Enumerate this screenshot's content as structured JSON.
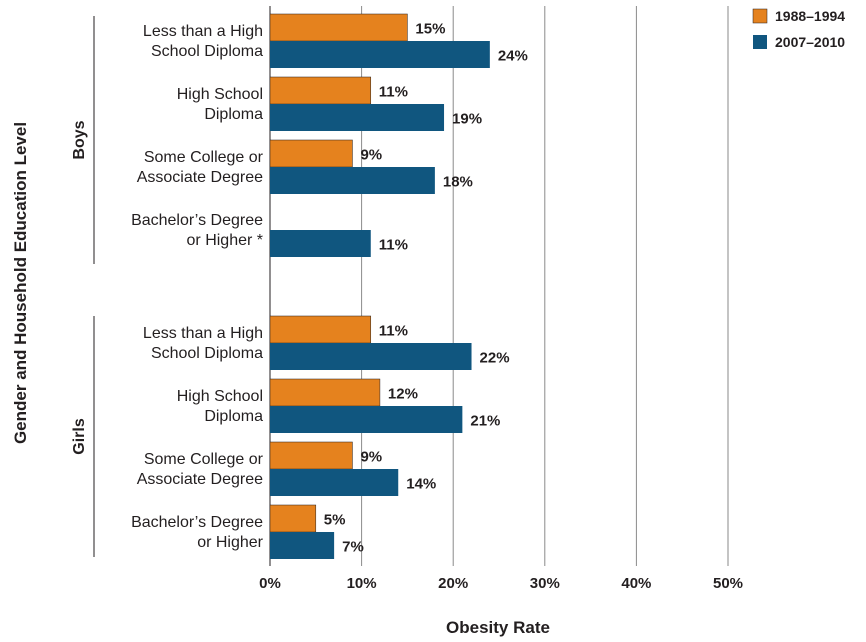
{
  "chart_data": {
    "type": "bar",
    "orientation": "horizontal",
    "xlabel": "Obesity Rate",
    "ylabel": "Gender and Household Education Level",
    "xlim": [
      0,
      50
    ],
    "xticks": [
      "0%",
      "10%",
      "20%",
      "30%",
      "40%",
      "50%"
    ],
    "grid": true,
    "legend_position": "top-right",
    "series": [
      {
        "name": "1988–1994",
        "color": "#e5821e"
      },
      {
        "name": "2007–2010",
        "color": "#10567f"
      }
    ],
    "groups": [
      {
        "name": "Boys",
        "categories": [
          {
            "label": [
              "Less than a High",
              "School Diploma"
            ],
            "values": [
              15,
              24
            ],
            "labels": [
              "15%",
              "24%"
            ]
          },
          {
            "label": [
              "High School",
              "Diploma"
            ],
            "values": [
              11,
              19
            ],
            "labels": [
              "11%",
              "19%"
            ]
          },
          {
            "label": [
              "Some College or",
              "Associate Degree"
            ],
            "values": [
              9,
              18
            ],
            "labels": [
              "9%",
              "18%"
            ]
          },
          {
            "label": [
              "Bachelor’s Degree",
              "or Higher *"
            ],
            "values": [
              null,
              11
            ],
            "labels": [
              null,
              "11%"
            ]
          }
        ]
      },
      {
        "name": "Girls",
        "categories": [
          {
            "label": [
              "Less than a High",
              "School Diploma"
            ],
            "values": [
              11,
              22
            ],
            "labels": [
              "11%",
              "22%"
            ]
          },
          {
            "label": [
              "High School",
              "Diploma"
            ],
            "values": [
              12,
              21
            ],
            "labels": [
              "12%",
              "21%"
            ]
          },
          {
            "label": [
              "Some College or",
              "Associate Degree"
            ],
            "values": [
              9,
              14
            ],
            "labels": [
              "9%",
              "14%"
            ]
          },
          {
            "label": [
              "Bachelor’s Degree",
              "or Higher"
            ],
            "values": [
              5,
              7
            ],
            "labels": [
              "5%",
              "7%"
            ]
          }
        ]
      }
    ]
  }
}
